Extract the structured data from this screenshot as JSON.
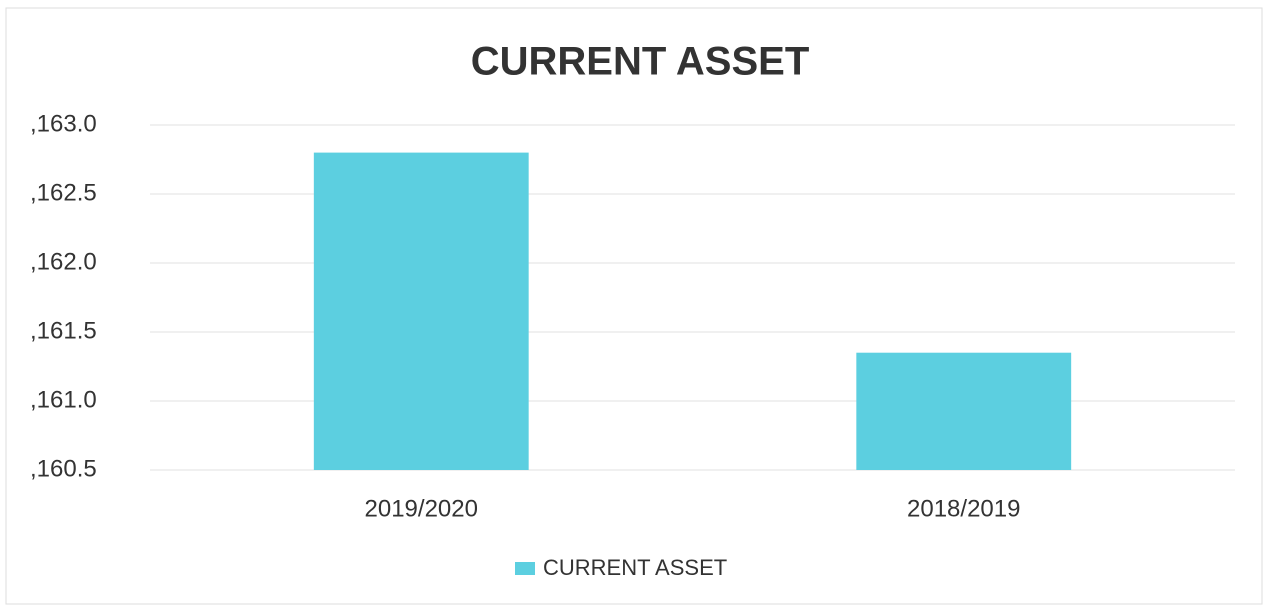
{
  "chart_data": {
    "type": "bar",
    "title": "CURRENT ASSET",
    "categories": [
      "2019/2020",
      "2018/2019"
    ],
    "series": [
      {
        "name": "CURRENT ASSET",
        "color": "#5ccfe0",
        "values": [
          162.8,
          161.35
        ]
      }
    ],
    "ylim": [
      160.5,
      163.0
    ],
    "yticks": [
      {
        "value": 160.5,
        "label": ",160.5"
      },
      {
        "value": 161.0,
        "label": ",161.0"
      },
      {
        "value": 161.5,
        "label": ",161.5"
      },
      {
        "value": 162.0,
        "label": ",162.0"
      },
      {
        "value": 162.5,
        "label": ",162.5"
      },
      {
        "value": 163.0,
        "label": ",163.0"
      }
    ],
    "grid": true,
    "legend": "bottom"
  }
}
